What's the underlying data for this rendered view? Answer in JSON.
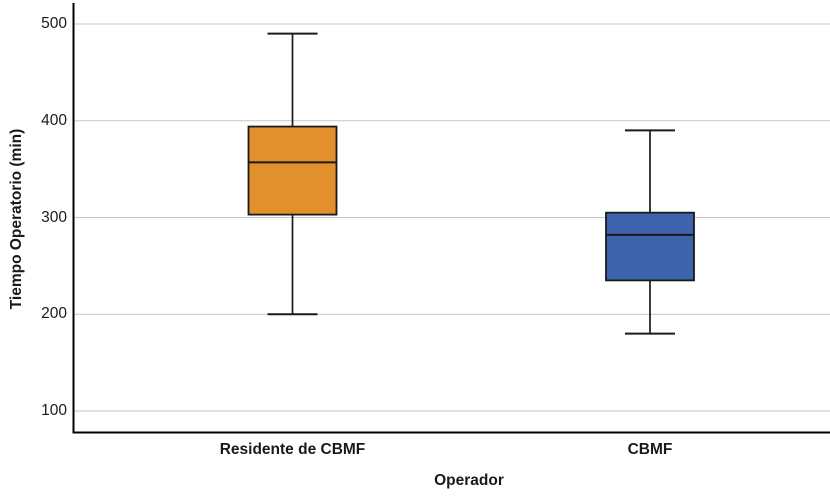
{
  "chart_data": {
    "type": "boxplot",
    "title": "",
    "xlabel": "Operador",
    "ylabel": "Tiempo Operatorio (min)",
    "categories": [
      "Residente de CBMF",
      "CBMF"
    ],
    "yticks": [
      500,
      400,
      300,
      200,
      100
    ],
    "ylim": [
      75,
      522
    ],
    "grid": "horizontal-only",
    "legend": "none",
    "series": [
      {
        "name": "Residente de CBMF",
        "whisker_low": 200,
        "q1": 303,
        "median": 357,
        "q3": 394,
        "whisker_high": 490,
        "fill_color": "#E2902C",
        "border_color": "#1A1A1A"
      },
      {
        "name": "CBMF",
        "whisker_low": 180,
        "q1": 235,
        "median": 282,
        "q3": 305,
        "whisker_high": 390,
        "fill_color": "#3D63AC",
        "border_color": "#1A1A1A"
      }
    ],
    "colors": {
      "gridline": "#C6C6C6",
      "axis": "#000000",
      "text": "#1A1A1A",
      "background": "#FFFFFF"
    }
  }
}
